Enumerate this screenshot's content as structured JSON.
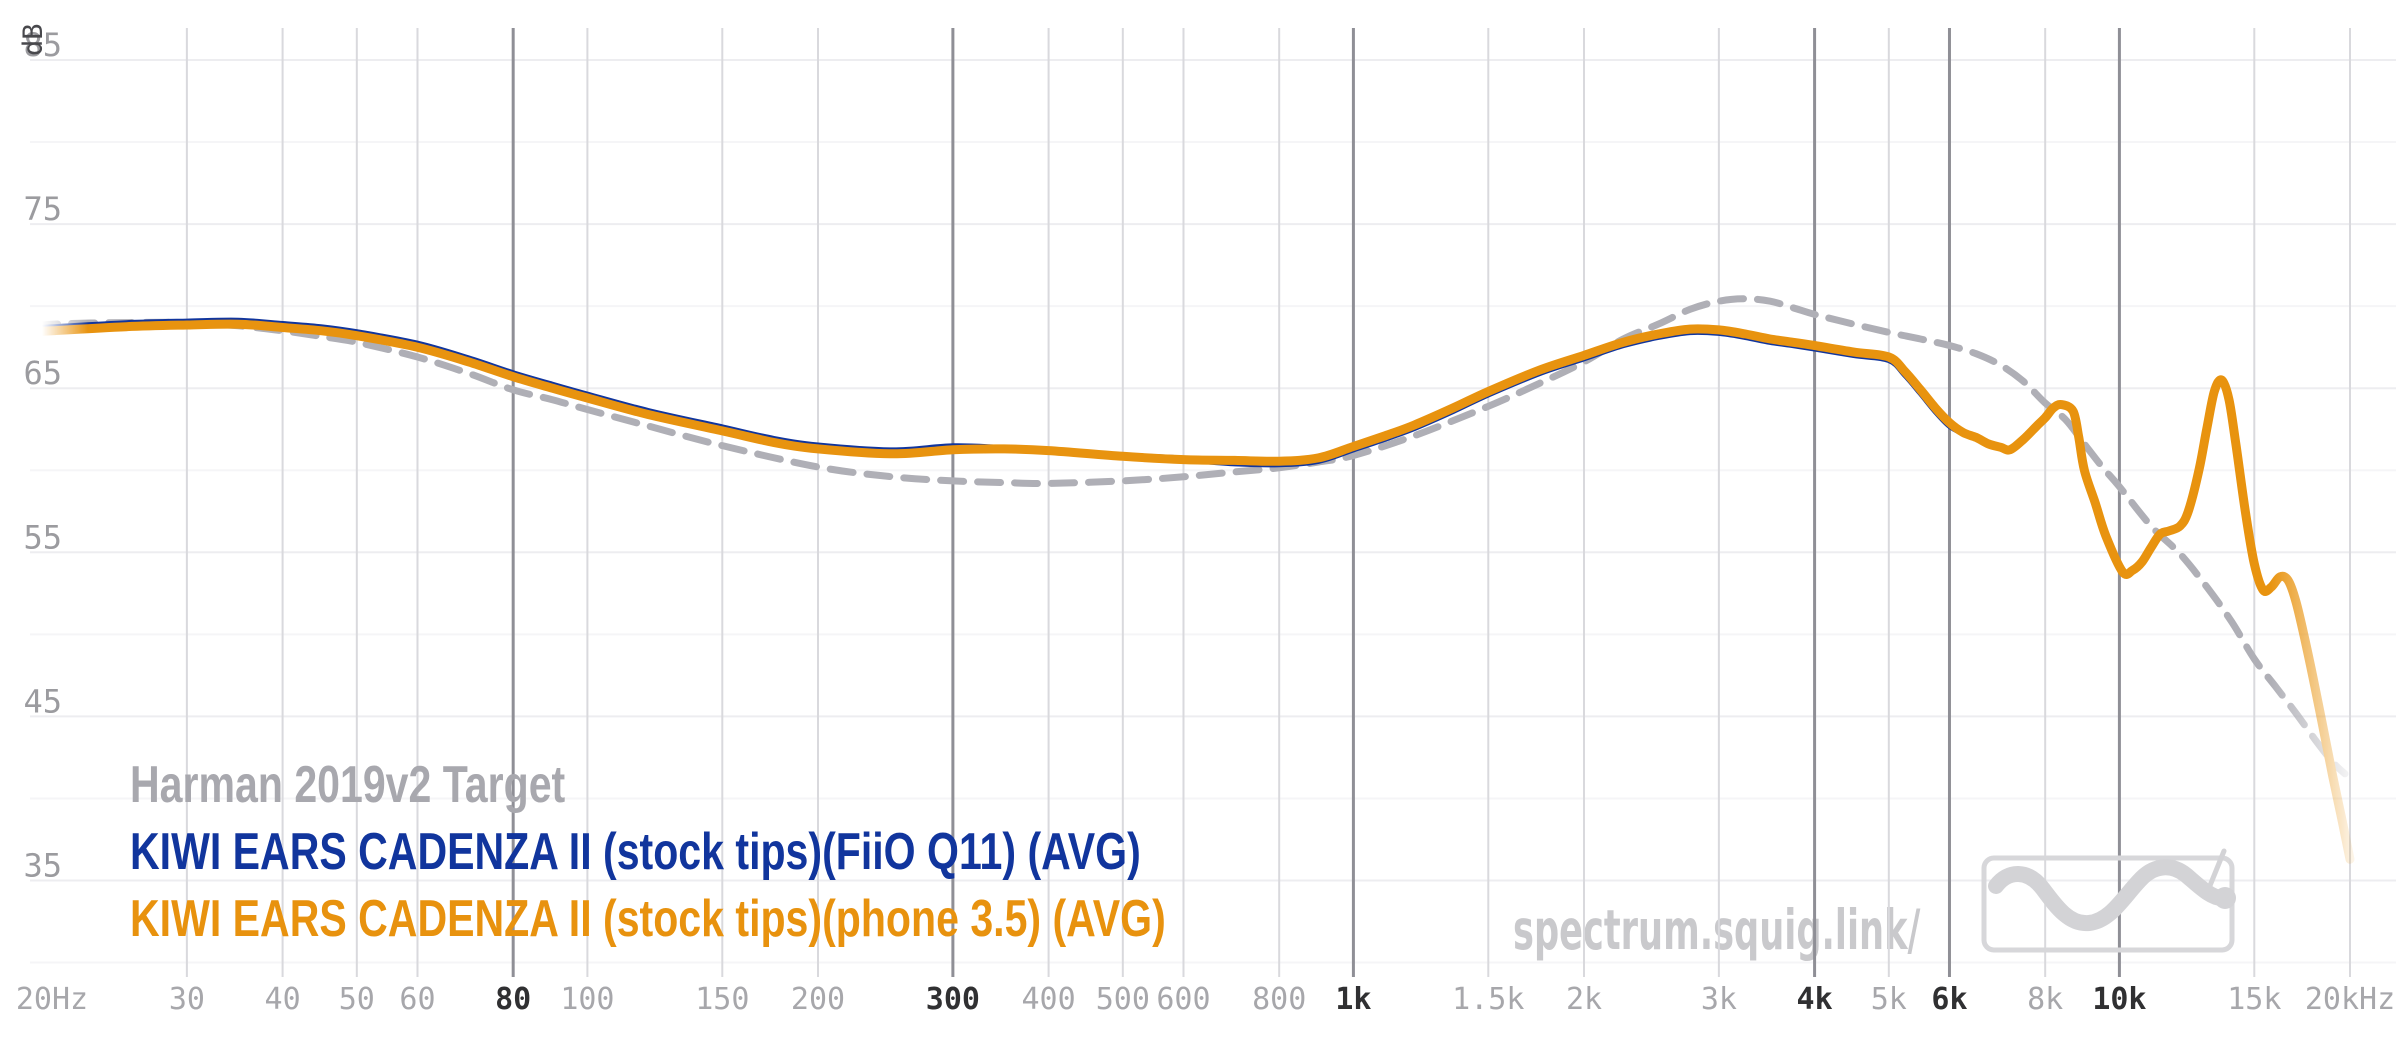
{
  "chart_data": {
    "type": "line",
    "title": "",
    "x_scale": "log",
    "x_range_hz": [
      20,
      20000
    ],
    "y_unit": "dB",
    "ylim": [
      30,
      87
    ],
    "grid": true,
    "legend_position": "bottom-left",
    "watermark": "spectrum.squig.link/",
    "y_ticks_major": [
      85,
      75,
      65,
      55,
      45,
      35
    ],
    "y_ticks_minor": [
      80,
      70,
      60,
      50,
      40,
      30
    ],
    "x_ticks": [
      {
        "f": 20,
        "label": "20Hz",
        "emphasis": false,
        "gridline": false
      },
      {
        "f": 30,
        "label": "30",
        "emphasis": false,
        "gridline": true
      },
      {
        "f": 40,
        "label": "40",
        "emphasis": false,
        "gridline": true
      },
      {
        "f": 50,
        "label": "50",
        "emphasis": false,
        "gridline": true
      },
      {
        "f": 60,
        "label": "60",
        "emphasis": false,
        "gridline": true
      },
      {
        "f": 80,
        "label": "80",
        "emphasis": true,
        "gridline": true
      },
      {
        "f": 100,
        "label": "100",
        "emphasis": false,
        "gridline": true
      },
      {
        "f": 150,
        "label": "150",
        "emphasis": false,
        "gridline": true
      },
      {
        "f": 200,
        "label": "200",
        "emphasis": false,
        "gridline": true
      },
      {
        "f": 300,
        "label": "300",
        "emphasis": true,
        "gridline": true
      },
      {
        "f": 400,
        "label": "400",
        "emphasis": false,
        "gridline": true
      },
      {
        "f": 500,
        "label": "500",
        "emphasis": false,
        "gridline": true
      },
      {
        "f": 600,
        "label": "600",
        "emphasis": false,
        "gridline": true
      },
      {
        "f": 800,
        "label": "800",
        "emphasis": false,
        "gridline": true
      },
      {
        "f": 1000,
        "label": "1k",
        "emphasis": true,
        "gridline": true
      },
      {
        "f": 1500,
        "label": "1.5k",
        "emphasis": false,
        "gridline": true
      },
      {
        "f": 2000,
        "label": "2k",
        "emphasis": false,
        "gridline": true
      },
      {
        "f": 3000,
        "label": "3k",
        "emphasis": false,
        "gridline": true
      },
      {
        "f": 4000,
        "label": "4k",
        "emphasis": true,
        "gridline": true
      },
      {
        "f": 5000,
        "label": "5k",
        "emphasis": false,
        "gridline": true
      },
      {
        "f": 6000,
        "label": "6k",
        "emphasis": true,
        "gridline": true
      },
      {
        "f": 8000,
        "label": "8k",
        "emphasis": false,
        "gridline": true
      },
      {
        "f": 10000,
        "label": "10k",
        "emphasis": true,
        "gridline": true
      },
      {
        "f": 15000,
        "label": "15k",
        "emphasis": false,
        "gridline": true
      },
      {
        "f": 20000,
        "label": "20kHz",
        "emphasis": false,
        "gridline": true
      }
    ],
    "series": [
      {
        "name": "Harman 2019v2 Target",
        "style": "dashed",
        "line_color": "#AFAFB6",
        "legend_color": "#A8A8AE",
        "stroke_width": 7,
        "points": [
          [
            17,
            68.6
          ],
          [
            20,
            68.9
          ],
          [
            25,
            69.0
          ],
          [
            30,
            69.0
          ],
          [
            35,
            68.8
          ],
          [
            40,
            68.5
          ],
          [
            45,
            68.15
          ],
          [
            50,
            67.8
          ],
          [
            60,
            66.9
          ],
          [
            70,
            65.9
          ],
          [
            80,
            64.9
          ],
          [
            90,
            64.3
          ],
          [
            100,
            63.7
          ],
          [
            120,
            62.7
          ],
          [
            150,
            61.5
          ],
          [
            200,
            60.2
          ],
          [
            250,
            59.6
          ],
          [
            300,
            59.35
          ],
          [
            350,
            59.25
          ],
          [
            400,
            59.2
          ],
          [
            500,
            59.35
          ],
          [
            600,
            59.6
          ],
          [
            700,
            59.9
          ],
          [
            800,
            60.15
          ],
          [
            900,
            60.5
          ],
          [
            1000,
            60.9
          ],
          [
            1200,
            62.1
          ],
          [
            1500,
            63.9
          ],
          [
            1750,
            65.3
          ],
          [
            2000,
            66.6
          ],
          [
            2250,
            68.0
          ],
          [
            2500,
            68.9
          ],
          [
            2750,
            69.8
          ],
          [
            3000,
            70.3
          ],
          [
            3250,
            70.45
          ],
          [
            3500,
            70.3
          ],
          [
            3750,
            69.9
          ],
          [
            4000,
            69.5
          ],
          [
            4500,
            68.9
          ],
          [
            5000,
            68.4
          ],
          [
            5500,
            68.0
          ],
          [
            6000,
            67.6
          ],
          [
            6500,
            67.1
          ],
          [
            7000,
            66.4
          ],
          [
            7500,
            65.4
          ],
          [
            8000,
            64.1
          ],
          [
            8500,
            63.1
          ],
          [
            9000,
            61.6
          ],
          [
            9500,
            60.2
          ],
          [
            10000,
            59.0
          ],
          [
            11000,
            56.6
          ],
          [
            12000,
            54.9
          ],
          [
            13000,
            52.9
          ],
          [
            14000,
            50.8
          ],
          [
            15000,
            48.5
          ],
          [
            16000,
            46.8
          ],
          [
            17000,
            45.2
          ],
          [
            18000,
            43.6
          ],
          [
            19000,
            42.2
          ],
          [
            19700,
            41.5
          ]
        ]
      },
      {
        "name": "KIWI EARS CADENZA II (stock tips)(FiiO Q11) (AVG)",
        "style": "solid",
        "line_color": "#11359D",
        "legend_color": "#11359D",
        "stroke_width": 7,
        "points": [
          [
            17,
            68.48
          ],
          [
            20,
            68.68
          ],
          [
            25,
            68.93
          ],
          [
            30,
            69.03
          ],
          [
            35,
            69.08
          ],
          [
            40,
            68.88
          ],
          [
            45,
            68.68
          ],
          [
            50,
            68.38
          ],
          [
            60,
            67.68
          ],
          [
            70,
            66.78
          ],
          [
            80,
            65.88
          ],
          [
            90,
            65.18
          ],
          [
            100,
            64.58
          ],
          [
            120,
            63.58
          ],
          [
            150,
            62.58
          ],
          [
            175,
            61.88
          ],
          [
            200,
            61.48
          ],
          [
            250,
            61.18
          ],
          [
            300,
            61.43
          ],
          [
            350,
            61.33
          ],
          [
            400,
            61.23
          ],
          [
            500,
            60.88
          ],
          [
            600,
            60.68
          ],
          [
            700,
            60.45
          ],
          [
            800,
            60.4
          ],
          [
            900,
            60.6
          ],
          [
            1000,
            61.3
          ],
          [
            1100,
            61.95
          ],
          [
            1200,
            62.6
          ],
          [
            1350,
            63.65
          ],
          [
            1500,
            64.65
          ],
          [
            1750,
            65.95
          ],
          [
            2000,
            66.85
          ],
          [
            2250,
            67.65
          ],
          [
            2500,
            68.15
          ],
          [
            2750,
            68.45
          ],
          [
            3000,
            68.4
          ],
          [
            3250,
            68.15
          ],
          [
            3500,
            67.85
          ],
          [
            3750,
            67.65
          ],
          [
            4000,
            67.45
          ],
          [
            4500,
            67.05
          ],
          [
            5000,
            66.75
          ],
          [
            5250,
            65.85
          ],
          [
            5500,
            64.75
          ],
          [
            5750,
            63.65
          ],
          [
            6000,
            62.75
          ],
          [
            6250,
            62.3
          ],
          [
            6500,
            62.0
          ],
          [
            6750,
            61.6
          ],
          [
            7000,
            61.4
          ],
          [
            7200,
            61.25
          ],
          [
            7500,
            61.9
          ],
          [
            7800,
            62.7
          ],
          [
            8000,
            63.2
          ],
          [
            8200,
            63.8
          ],
          [
            8400,
            64.0
          ],
          [
            8700,
            63.6
          ],
          [
            8850,
            62.0
          ],
          [
            9000,
            60.0
          ],
          [
            9300,
            58.0
          ],
          [
            9600,
            56.0
          ],
          [
            10100,
            53.8
          ],
          [
            10400,
            53.9
          ],
          [
            10700,
            54.4
          ],
          [
            11000,
            55.3
          ],
          [
            11300,
            56.1
          ],
          [
            11600,
            56.3
          ],
          [
            12000,
            56.6
          ],
          [
            12300,
            57.5
          ],
          [
            12700,
            60.0
          ],
          [
            13000,
            62.5
          ],
          [
            13300,
            64.8
          ],
          [
            13600,
            65.5
          ],
          [
            13900,
            64.3
          ],
          [
            14200,
            61.5
          ],
          [
            14600,
            57.5
          ],
          [
            15000,
            54.3
          ],
          [
            15400,
            52.7
          ],
          [
            15800,
            52.9
          ],
          [
            16200,
            53.5
          ],
          [
            16600,
            53.3
          ],
          [
            17000,
            52.0
          ],
          [
            17500,
            49.5
          ],
          [
            18000,
            46.8
          ],
          [
            18500,
            44.0
          ],
          [
            19000,
            41.3
          ],
          [
            19500,
            38.8
          ],
          [
            20000,
            36.3
          ]
        ]
      },
      {
        "name": "KIWI EARS CADENZA II (stock tips)(phone 3.5) (AVG)",
        "style": "solid",
        "line_color": "#E8930F",
        "legend_color": "#E8920E",
        "stroke_width": 9,
        "points": [
          [
            17,
            68.3
          ],
          [
            20,
            68.5
          ],
          [
            25,
            68.75
          ],
          [
            30,
            68.85
          ],
          [
            35,
            68.9
          ],
          [
            40,
            68.7
          ],
          [
            45,
            68.5
          ],
          [
            50,
            68.2
          ],
          [
            60,
            67.5
          ],
          [
            70,
            66.6
          ],
          [
            80,
            65.7
          ],
          [
            90,
            65.0
          ],
          [
            100,
            64.4
          ],
          [
            120,
            63.4
          ],
          [
            150,
            62.4
          ],
          [
            175,
            61.7
          ],
          [
            200,
            61.3
          ],
          [
            250,
            61.0
          ],
          [
            300,
            61.25
          ],
          [
            350,
            61.3
          ],
          [
            400,
            61.2
          ],
          [
            500,
            60.85
          ],
          [
            600,
            60.65
          ],
          [
            700,
            60.6
          ],
          [
            800,
            60.55
          ],
          [
            900,
            60.75
          ],
          [
            1000,
            61.45
          ],
          [
            1100,
            62.1
          ],
          [
            1200,
            62.75
          ],
          [
            1350,
            63.8
          ],
          [
            1500,
            64.8
          ],
          [
            1750,
            66.1
          ],
          [
            2000,
            67.0
          ],
          [
            2250,
            67.8
          ],
          [
            2500,
            68.3
          ],
          [
            2750,
            68.6
          ],
          [
            3000,
            68.55
          ],
          [
            3250,
            68.3
          ],
          [
            3500,
            68.0
          ],
          [
            3750,
            67.8
          ],
          [
            4000,
            67.6
          ],
          [
            4500,
            67.2
          ],
          [
            5000,
            66.9
          ],
          [
            5250,
            66.0
          ],
          [
            5500,
            64.9
          ],
          [
            5750,
            63.8
          ],
          [
            6000,
            62.9
          ],
          [
            6250,
            62.3
          ],
          [
            6500,
            62.0
          ],
          [
            6750,
            61.6
          ],
          [
            7000,
            61.4
          ],
          [
            7200,
            61.25
          ],
          [
            7500,
            61.9
          ],
          [
            7800,
            62.7
          ],
          [
            8000,
            63.2
          ],
          [
            8200,
            63.8
          ],
          [
            8400,
            64.0
          ],
          [
            8700,
            63.6
          ],
          [
            8850,
            62.0
          ],
          [
            9000,
            60.0
          ],
          [
            9300,
            58.0
          ],
          [
            9600,
            56.0
          ],
          [
            10100,
            53.8
          ],
          [
            10400,
            53.9
          ],
          [
            10700,
            54.4
          ],
          [
            11000,
            55.3
          ],
          [
            11300,
            56.1
          ],
          [
            11600,
            56.3
          ],
          [
            12000,
            56.6
          ],
          [
            12300,
            57.5
          ],
          [
            12700,
            60.0
          ],
          [
            13000,
            62.5
          ],
          [
            13300,
            64.8
          ],
          [
            13600,
            65.5
          ],
          [
            13900,
            64.3
          ],
          [
            14200,
            61.5
          ],
          [
            14600,
            57.5
          ],
          [
            15000,
            54.3
          ],
          [
            15400,
            52.7
          ],
          [
            15800,
            52.9
          ],
          [
            16200,
            53.5
          ],
          [
            16600,
            53.3
          ],
          [
            17000,
            52.0
          ],
          [
            17500,
            49.5
          ],
          [
            18000,
            46.8
          ],
          [
            18500,
            44.0
          ],
          [
            19000,
            41.3
          ],
          [
            19500,
            38.8
          ],
          [
            20000,
            36.3
          ]
        ]
      }
    ],
    "colors": {
      "background": "#FFFFFF",
      "grid_vertical": "#D9D9DD",
      "grid_vertical_emphasis": "#8F8F96",
      "grid_horizontal_major": "#EDEDF0",
      "grid_horizontal_minor": "#F5F5F7",
      "x_tick_label": "#A7A7AB",
      "x_tick_label_emphasis": "#303032",
      "y_tick_label": "#9B9B9F",
      "unit_label": "#48484C",
      "watermark": "#C9C9CC",
      "logo": "#D3D3D6",
      "logo_box": "#D7D7DA"
    }
  }
}
